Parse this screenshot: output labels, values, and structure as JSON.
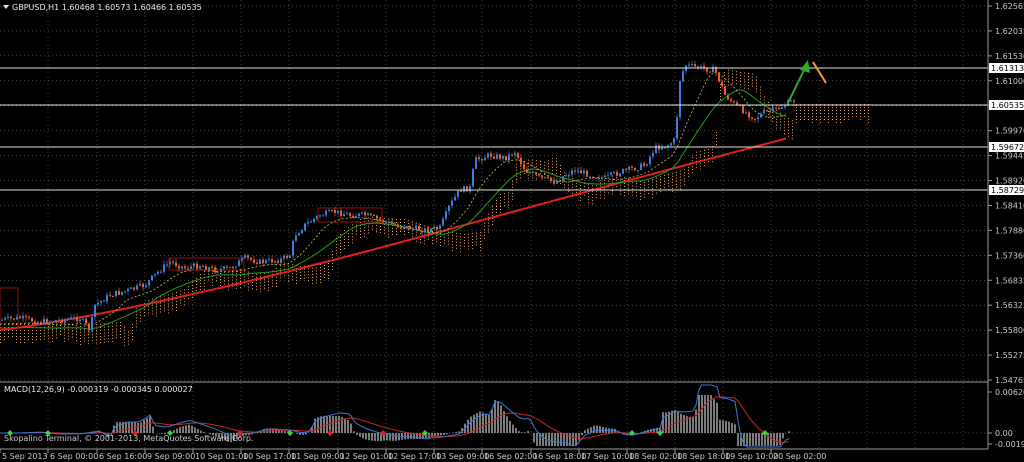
{
  "main": {
    "symbol_line": "GBPUSD,H1  1.60468 1.60573 1.60466 1.60535",
    "price_axis": [
      "1.62565",
      "1.62035",
      "1.61530",
      "1.61000",
      "1.60535",
      "1.59970",
      "1.59445",
      "1.58920",
      "1.58410",
      "1.57880",
      "1.57360",
      "1.56835",
      "1.56325",
      "1.55800",
      "1.55275",
      "1.54765"
    ],
    "horizontal_levels": [
      "1.61313",
      "1.60535",
      "1.59672",
      "1.58729"
    ],
    "time_axis": [
      "5 Sep 2013",
      "6 Sep 00:00",
      "6 Sep 16:00",
      "9 Sep 09:00",
      "10 Sep 01:00",
      "10 Sep 17:00",
      "11 Sep 09:00",
      "12 Sep 01:00",
      "12 Sep 17:00",
      "13 Sep 09:00",
      "16 Sep 02:00",
      "16 Sep 18:00",
      "17 Sep 10:00",
      "18 Sep 02:00",
      "18 Sep 18:00",
      "19 Sep 10:00",
      "20 Sep 02:00"
    ]
  },
  "macd": {
    "label": "MACD(12,26,9) -0.000319 -0.000345 0.000027",
    "axis": [
      "0.006206",
      "0.00",
      "-0.001911"
    ]
  },
  "footer": {
    "copyright": "Skopalino Terminal, © 2001-2013, MetaQuotes Software Corp."
  },
  "colors": {
    "bull": "#3d7fd9",
    "bear": "#e8602a",
    "ma_fast": "#1f9b1f",
    "ma_slow": "#e02020",
    "macd_blue": "#3a7ad6",
    "macd_red": "#d02020",
    "histogram": "#cfcfcf",
    "grid": "#8a8a8a"
  }
}
